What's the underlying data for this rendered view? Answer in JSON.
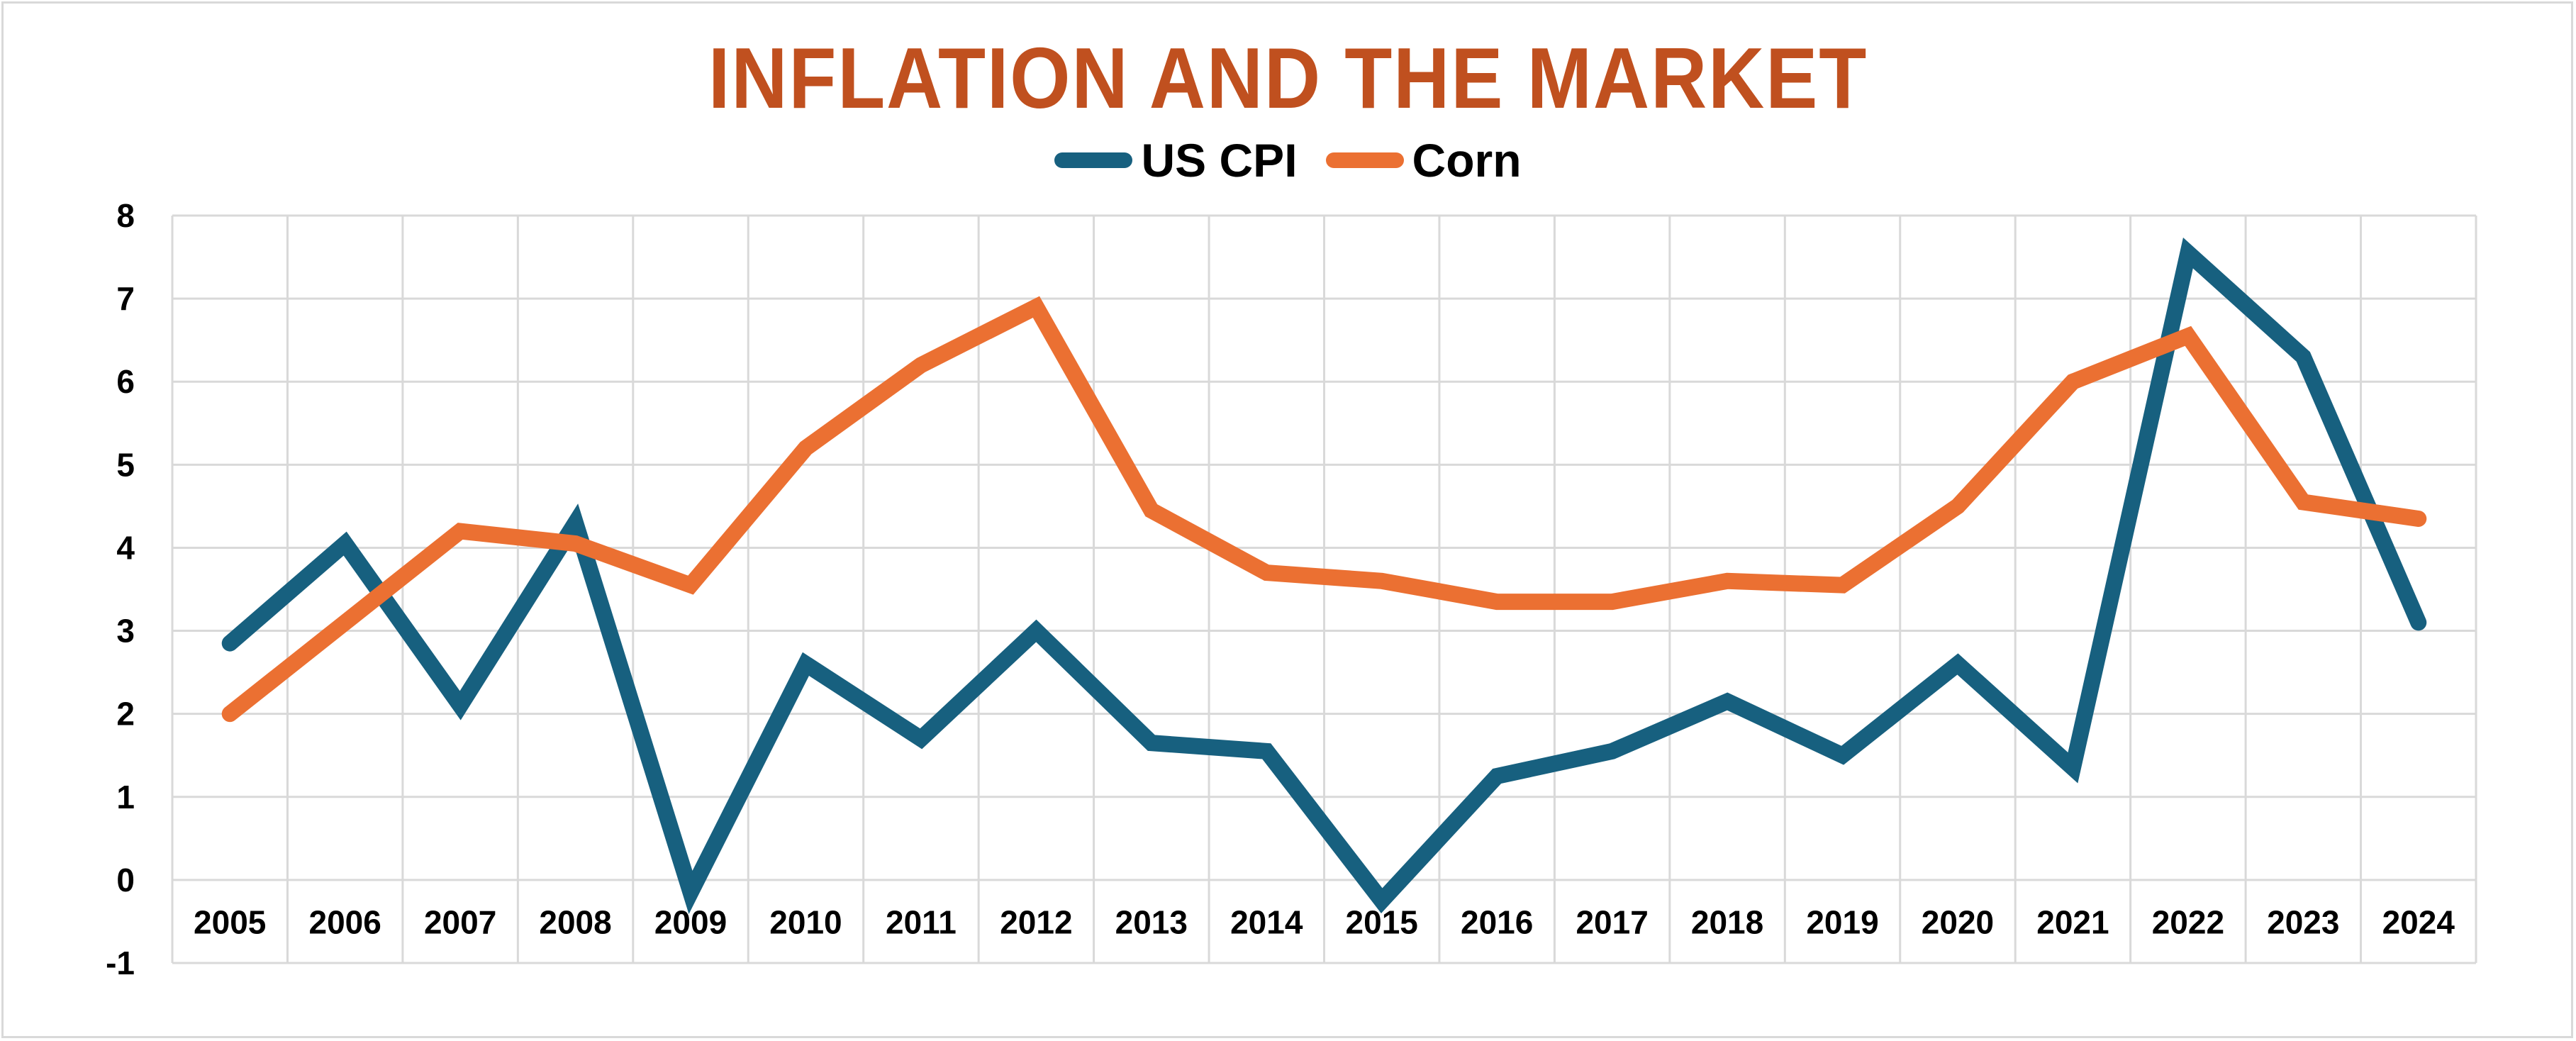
{
  "chart_data": {
    "type": "line",
    "title": "INFLATION AND THE MARKET",
    "xlabel": "",
    "ylabel": "",
    "ylim": [
      -1,
      8
    ],
    "yticks": [
      "8",
      "7",
      "6",
      "5",
      "4",
      "3",
      "2",
      "1",
      "0",
      "-1"
    ],
    "grid": true,
    "legend_position": "top",
    "categories": [
      "2005",
      "2006",
      "2007",
      "2008",
      "2009",
      "2010",
      "2011",
      "2012",
      "2013",
      "2014",
      "2015",
      "2016",
      "2017",
      "2018",
      "2019",
      "2020",
      "2021",
      "2022",
      "2023",
      "2024"
    ],
    "series": [
      {
        "name": "US CPI",
        "color": "#17607F",
        "values": [
          2.85,
          4.05,
          2.1,
          4.3,
          -0.15,
          2.6,
          1.7,
          3.0,
          1.65,
          1.55,
          -0.25,
          1.25,
          1.55,
          2.15,
          1.5,
          2.6,
          1.35,
          7.55,
          6.3,
          3.1
        ]
      },
      {
        "name": "Corn",
        "color": "#EB7032",
        "values": [
          2.0,
          3.1,
          4.2,
          4.05,
          3.55,
          5.2,
          6.2,
          6.9,
          4.45,
          3.7,
          3.6,
          3.35,
          3.35,
          3.6,
          3.55,
          4.5,
          6.0,
          6.55,
          4.55,
          4.35
        ]
      }
    ]
  }
}
